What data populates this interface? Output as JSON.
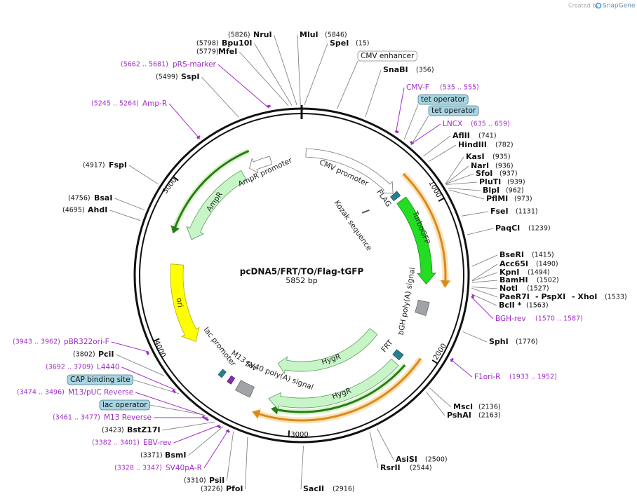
{
  "header": {
    "credit": "Created by",
    "brand": "SnapGene"
  },
  "title": "pcDNA5/FRT/TO/Flag-tGFP",
  "length": "5852 bp",
  "ring_ticks": [
    "1000",
    "2000",
    "3000",
    "4000",
    "5000"
  ],
  "sites": [
    {
      "name": "NruI",
      "position": "(5826)"
    },
    {
      "name": "Bpu10I",
      "position": "(5798)"
    },
    {
      "name": "MfeI",
      "position": "(5779)"
    },
    {
      "name": "MluI",
      "position": "(5846)"
    },
    {
      "name": "SpeI",
      "position": "(15)"
    },
    {
      "name": "SnaBI",
      "position": "(356)"
    },
    {
      "name": "SspI",
      "position": "(5499)"
    },
    {
      "name": "AflII",
      "position": "(741)"
    },
    {
      "name": "HindIII",
      "position": "(782)"
    },
    {
      "name": "KasI",
      "position": "(935)"
    },
    {
      "name": "NarI",
      "position": "(936)"
    },
    {
      "name": "SfoI",
      "position": "(937)"
    },
    {
      "name": "PluTI",
      "position": "(939)"
    },
    {
      "name": "BlpI",
      "position": "(962)"
    },
    {
      "name": "PflMI",
      "position": "(973)"
    },
    {
      "name": "FseI",
      "position": "(1131)"
    },
    {
      "name": "PaqCI",
      "position": "(1239)"
    },
    {
      "name": "BseRI",
      "position": "(1415)"
    },
    {
      "name": "Acc65I",
      "position": "(1490)"
    },
    {
      "name": "KpnI",
      "position": "(1494)"
    },
    {
      "name": "BamHI",
      "position": "(1502)"
    },
    {
      "name": "NotI",
      "position": "(1527)"
    },
    {
      "names": [
        "PaeR7I",
        "- PspXI",
        "- XhoI"
      ],
      "position": "(1533)"
    },
    {
      "name": "BclI *",
      "position": "(1563)"
    },
    {
      "name": "SphI",
      "position": "(1776)"
    },
    {
      "name": "MscI",
      "position": "(2136)"
    },
    {
      "name": "PshAI",
      "position": "(2163)"
    },
    {
      "name": "AsiSI",
      "position": "(2500)"
    },
    {
      "name": "RsrII",
      "position": "(2544)"
    },
    {
      "name": "SacII",
      "position": "(2916)"
    },
    {
      "name": "PfoI",
      "position": "(3226)"
    },
    {
      "name": "PsiI",
      "position": "(3310)"
    },
    {
      "name": "BsmI",
      "position": "(3371)"
    },
    {
      "name": "BstZ17I",
      "position": "(3423)"
    },
    {
      "name": "PciI",
      "position": "(3802)"
    },
    {
      "name": "AhdI",
      "position": "(4695)"
    },
    {
      "name": "BsaI",
      "position": "(4756)"
    },
    {
      "name": "FspI",
      "position": "(4917)"
    }
  ],
  "primers": [
    {
      "name": "pRS-marker",
      "range": "(5662 .. 5681)"
    },
    {
      "name": "Amp-R",
      "range": "(5245 .. 5264)"
    },
    {
      "name": "CMV-F",
      "range": "(535 .. 555)"
    },
    {
      "name": "LNCX",
      "range": "(635 .. 659)"
    },
    {
      "name": "BGH-rev",
      "range": "(1570 .. 1587)"
    },
    {
      "name": "F1ori-R",
      "range": "(1933 .. 1952)"
    },
    {
      "name": "SV40pA-R",
      "range": "(3328 .. 3347)"
    },
    {
      "name": "EBV-rev",
      "range": "(3382 .. 3401)"
    },
    {
      "name": "M13 Reverse",
      "range": "(3461 .. 3477)"
    },
    {
      "name": "M13/pUC Reverse",
      "range": "(3474 .. 3496)"
    },
    {
      "name": "L4440",
      "range": "(3692 .. 3709)"
    },
    {
      "name": "pBR322ori-F",
      "range": "(3943 .. 3962)"
    }
  ],
  "boxed_features": [
    "CMV enhancer",
    "tet operator",
    "tet operator",
    "CAP binding site",
    "lac operator"
  ],
  "features": [
    "CMV promoter",
    "FLAG",
    "Kozak sequence",
    "TurboGFP",
    "bGH poly(A) signal",
    "FRT",
    "HygR",
    "HygR",
    "SV40 poly(A) signal",
    "M13 rev",
    "lac promoter",
    "ori",
    "AmpR",
    "AmpR promoter"
  ]
}
